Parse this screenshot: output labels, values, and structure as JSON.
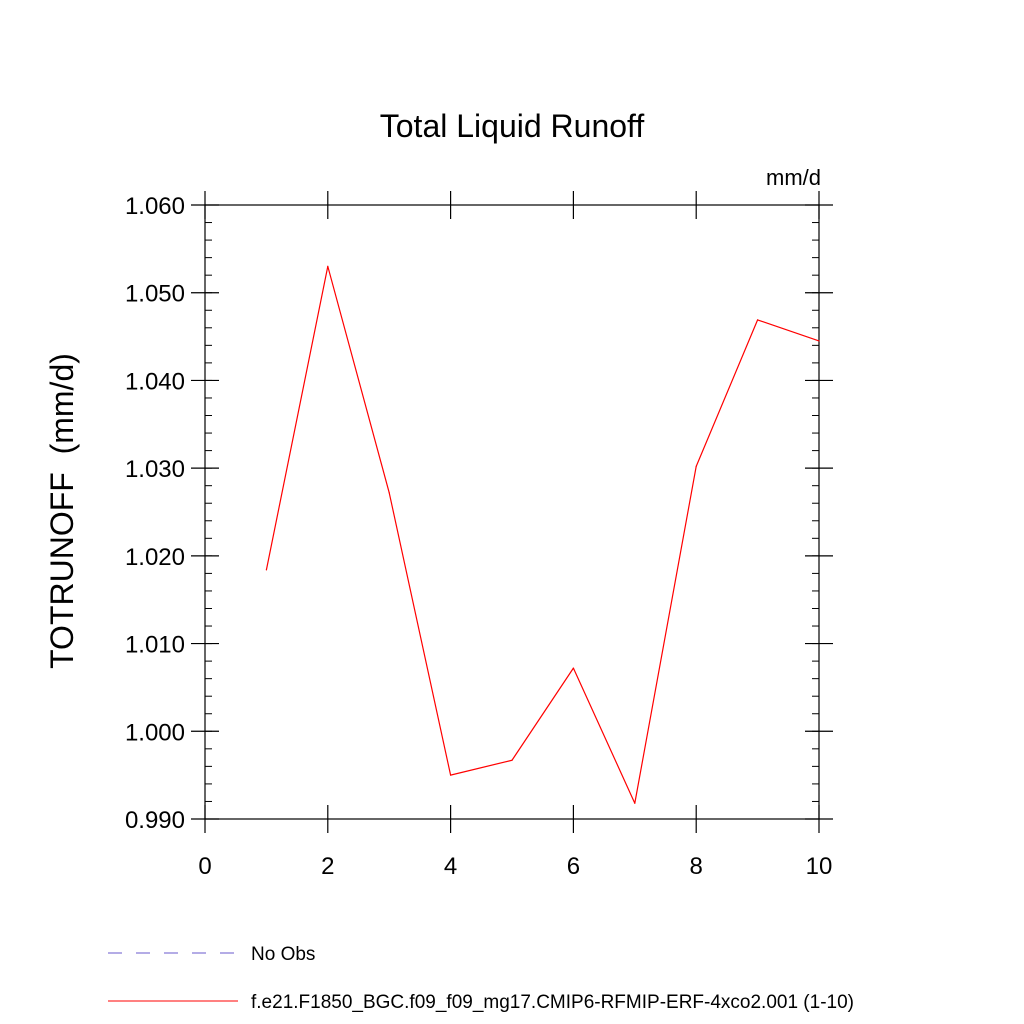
{
  "chart_data": {
    "type": "line",
    "title": "Total Liquid Runoff",
    "units_label": "mm/d",
    "ylabel": "TOTRUNOFF  (mm/d)",
    "xlabel": "",
    "xlim": [
      0,
      10
    ],
    "ylim": [
      0.99,
      1.06
    ],
    "x_ticks": [
      0,
      2,
      4,
      6,
      8,
      10
    ],
    "x_tick_labels": [
      "0",
      "2",
      "4",
      "6",
      "8",
      "10"
    ],
    "y_ticks": [
      0.99,
      1.0,
      1.01,
      1.02,
      1.03,
      1.04,
      1.05,
      1.06
    ],
    "y_tick_labels": [
      "0.990",
      "1.000",
      "1.010",
      "1.020",
      "1.030",
      "1.040",
      "1.050",
      "1.060"
    ],
    "grid": false,
    "legend_position": "bottom-left",
    "series": [
      {
        "name": "f.e21.F1850_BGC.f09_f09_mg17.CMIP6-RFMIP-ERF-4xco2.001 (1-10)",
        "color": "#ff0000",
        "line_style": "solid",
        "x": [
          1,
          2,
          3,
          4,
          5,
          6,
          7,
          8,
          9,
          10
        ],
        "values": [
          1.0184,
          1.053,
          1.0272,
          0.995,
          0.9967,
          1.0072,
          0.9918,
          1.0302,
          1.0469,
          1.0445
        ]
      }
    ],
    "legend": [
      {
        "label": "No Obs",
        "color": "#6a5acd",
        "line_style": "dashed"
      },
      {
        "label": "f.e21.F1850_BGC.f09_f09_mg17.CMIP6-RFMIP-ERF-4xco2.001 (1-10)",
        "color": "#ff0000",
        "line_style": "solid"
      }
    ]
  }
}
